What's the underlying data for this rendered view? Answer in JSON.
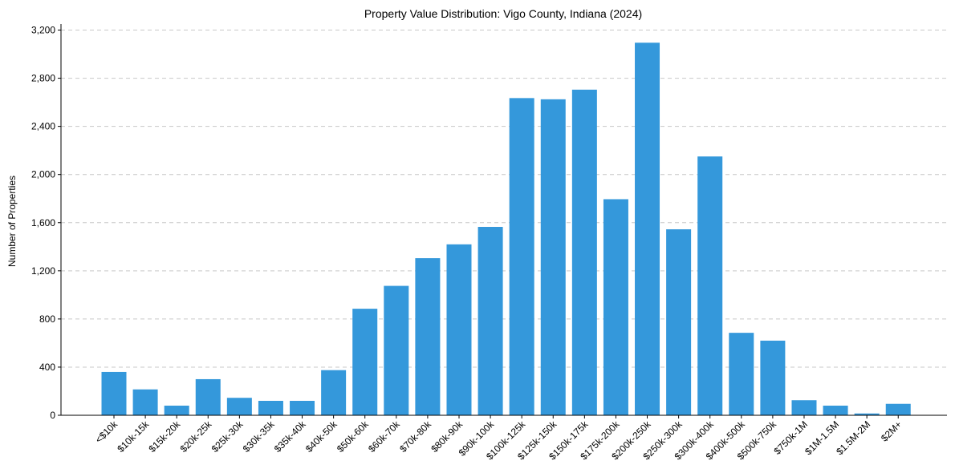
{
  "chart_data": {
    "type": "bar",
    "title": "Property Value Distribution: Vigo County, Indiana (2024)",
    "xlabel": "",
    "ylabel": "Number of Properties",
    "ylim": [
      0,
      3250
    ],
    "yticks": [
      0,
      400,
      800,
      1200,
      1600,
      2000,
      2400,
      2800,
      3200
    ],
    "ytick_labels": [
      "0",
      "400",
      "800",
      "1,200",
      "1,600",
      "2,000",
      "2,400",
      "2,800",
      "3,200"
    ],
    "grid": "y-dashed",
    "bar_color": "#3498db",
    "categories": [
      "<$10k",
      "$10k-15k",
      "$15k-20k",
      "$20k-25k",
      "$25k-30k",
      "$30k-35k",
      "$35k-40k",
      "$40k-50k",
      "$50k-60k",
      "$60k-70k",
      "$70k-80k",
      "$80k-90k",
      "$90k-100k",
      "$100k-125k",
      "$125k-150k",
      "$150k-175k",
      "$175k-200k",
      "$200k-250k",
      "$250k-300k",
      "$300k-400k",
      "$400k-500k",
      "$500k-750k",
      "$750k-1M",
      "$1M-1.5M",
      "$1.5M-2M",
      "$2M+"
    ],
    "values": [
      360,
      215,
      80,
      300,
      145,
      120,
      120,
      375,
      885,
      1075,
      1305,
      1420,
      1565,
      2635,
      2625,
      2705,
      1795,
      3095,
      1545,
      2150,
      685,
      620,
      125,
      80,
      15,
      95
    ]
  }
}
